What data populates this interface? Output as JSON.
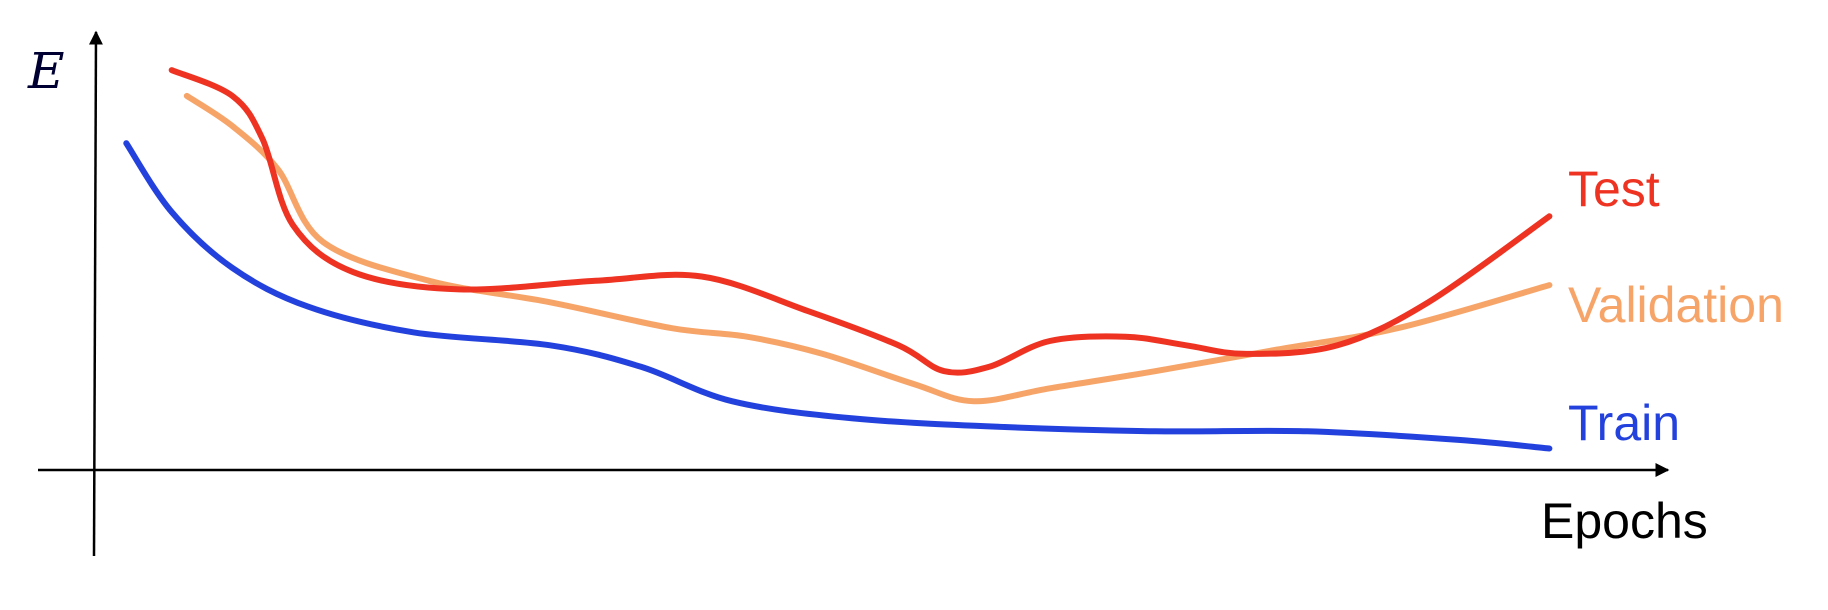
{
  "chart_data": {
    "type": "line",
    "title": "",
    "xlabel": "Epochs",
    "ylabel": "E",
    "xlim": [
      0,
      1
    ],
    "ylim": [
      0,
      1
    ],
    "ticks": false,
    "grid": false,
    "legend": "right-end-labels",
    "series": [
      {
        "name": "Test",
        "color": "#ee3322",
        "x": [
          0.05,
          0.09,
          0.11,
          0.13,
          0.17,
          0.24,
          0.33,
          0.4,
          0.47,
          0.53,
          0.56,
          0.59,
          0.63,
          0.68,
          0.72,
          0.76,
          0.82,
          0.88,
          0.96
        ],
        "y": [
          0.93,
          0.87,
          0.77,
          0.57,
          0.46,
          0.42,
          0.44,
          0.45,
          0.37,
          0.29,
          0.23,
          0.24,
          0.3,
          0.31,
          0.29,
          0.27,
          0.29,
          0.39,
          0.59
        ]
      },
      {
        "name": "Validation",
        "color": "#f7a469",
        "x": [
          0.06,
          0.09,
          0.12,
          0.15,
          0.22,
          0.3,
          0.38,
          0.43,
          0.48,
          0.54,
          0.58,
          0.63,
          0.7,
          0.78,
          0.86,
          0.96
        ],
        "y": [
          0.87,
          0.8,
          0.7,
          0.53,
          0.44,
          0.39,
          0.33,
          0.31,
          0.27,
          0.2,
          0.16,
          0.19,
          0.23,
          0.28,
          0.33,
          0.43
        ]
      },
      {
        "name": "Train",
        "color": "#2342dd",
        "x": [
          0.02,
          0.05,
          0.09,
          0.14,
          0.21,
          0.3,
          0.36,
          0.42,
          0.5,
          0.6,
          0.7,
          0.8,
          0.9,
          0.96
        ],
        "y": [
          0.76,
          0.6,
          0.47,
          0.38,
          0.32,
          0.29,
          0.24,
          0.16,
          0.12,
          0.1,
          0.09,
          0.09,
          0.07,
          0.05
        ]
      }
    ]
  }
}
